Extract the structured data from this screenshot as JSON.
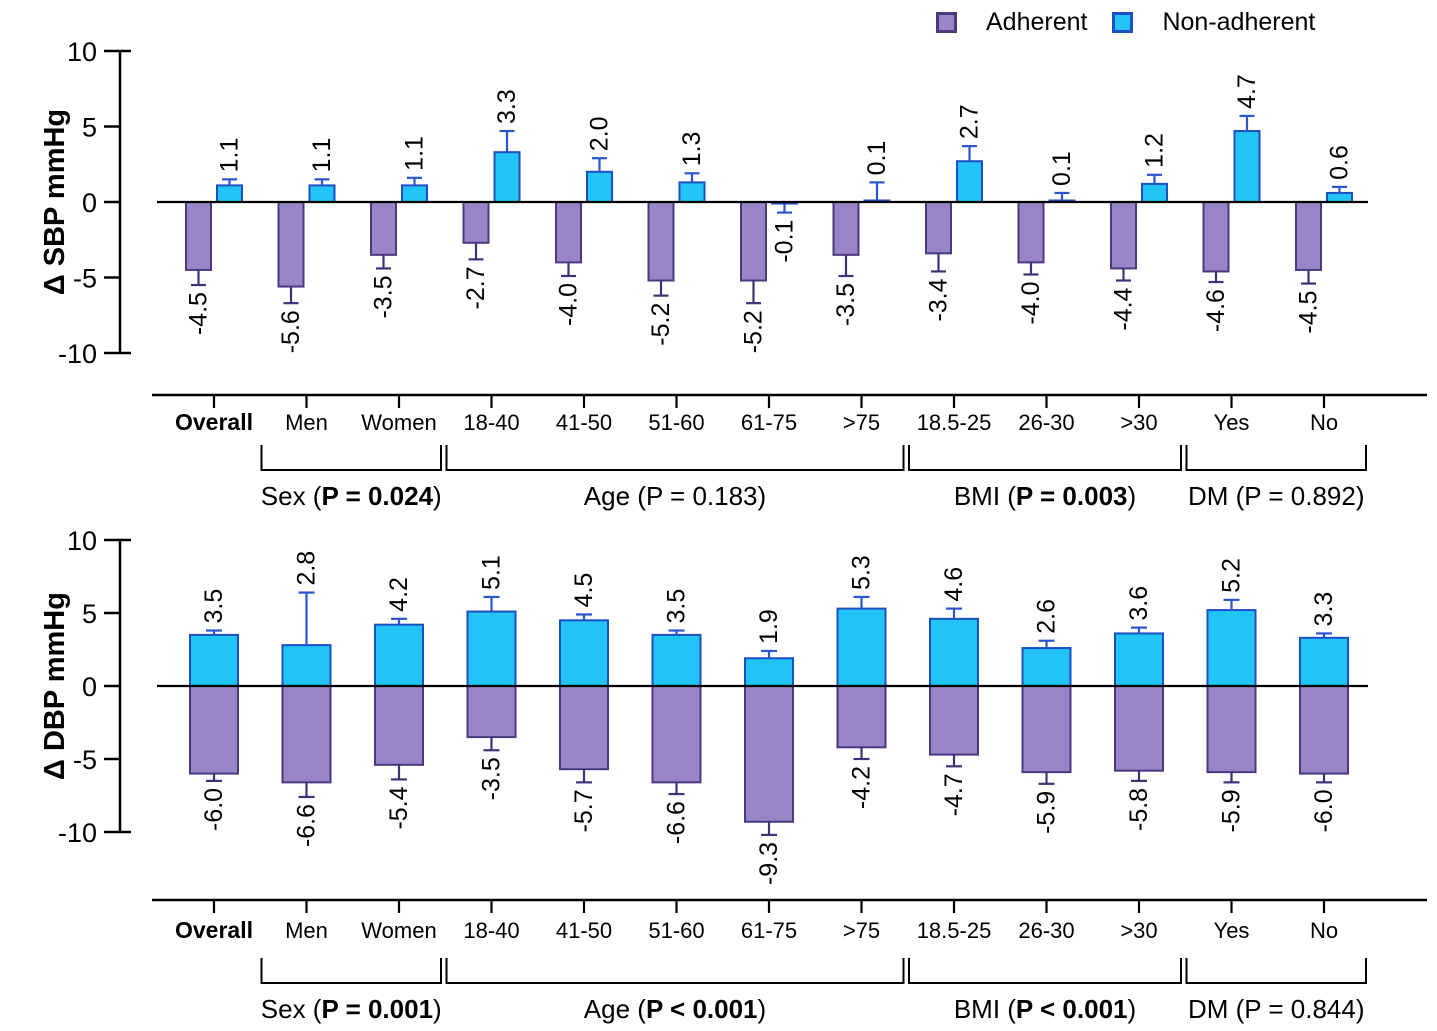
{
  "figure": {
    "background": "#ffffff",
    "description": "Change in blood pressure (SBP/DBP) for adherent vs non-adherent patients by subgroup"
  },
  "legend": {
    "items": [
      {
        "label": "Adherent",
        "fill": "#9A84C8",
        "border": "#493A80"
      },
      {
        "label": "Non-adherent",
        "fill": "#22C4F5",
        "border": "#1D4FC4"
      }
    ]
  },
  "colors": {
    "adherent_fill": "#9A84C8",
    "adherent_stroke": "#493A80",
    "adherent_error": "#3F3178",
    "nonadherent_fill": "#22C4F5",
    "nonadherent_stroke": "#1D4FC4",
    "nonadherent_error": "#2B55D0",
    "axis": "#000000"
  },
  "chart_data": [
    {
      "type": "bar",
      "panel": "SBP",
      "ylabel": "Δ SBP mmHg",
      "ylim": [
        -10,
        10
      ],
      "yticks": [
        10,
        5,
        0,
        -5,
        -10
      ],
      "layout": "paired",
      "grid": false,
      "categories": [
        "Overall",
        "Men",
        "Women",
        "18-40",
        "41-50",
        "51-60",
        "61-75",
        ">75",
        "18.5-25",
        "26-30",
        ">30",
        "Yes",
        "No"
      ],
      "bold_categories": [
        "Overall"
      ],
      "series": [
        {
          "name": "Adherent",
          "values": [
            -4.5,
            -5.6,
            -3.5,
            -2.7,
            -4.0,
            -5.2,
            -5.2,
            -3.5,
            -3.4,
            -4.0,
            -4.4,
            -4.6,
            -4.5
          ],
          "errors": [
            1.0,
            1.1,
            0.9,
            1.1,
            0.9,
            1.0,
            1.5,
            1.4,
            1.2,
            0.8,
            0.8,
            0.7,
            0.9
          ]
        },
        {
          "name": "Non-adherent",
          "values": [
            1.1,
            1.1,
            1.1,
            3.3,
            2.0,
            1.3,
            -0.1,
            0.1,
            2.7,
            0.1,
            1.2,
            4.7,
            0.6
          ],
          "errors": [
            0.4,
            0.4,
            0.5,
            1.4,
            0.9,
            0.6,
            0.6,
            1.2,
            1.0,
            0.5,
            0.6,
            1.0,
            0.4
          ]
        }
      ],
      "groups": [
        {
          "label": "Sex",
          "p": "P = 0.024",
          "p_bold": true,
          "from": 1,
          "to": 2
        },
        {
          "label": "Age",
          "p": "P = 0.183",
          "p_bold": false,
          "from": 3,
          "to": 7
        },
        {
          "label": "BMI",
          "p": "P = 0.003",
          "p_bold": true,
          "from": 8,
          "to": 10
        },
        {
          "label": "DM",
          "p": "P = 0.892",
          "p_bold": false,
          "from": 11,
          "to": 12
        }
      ]
    },
    {
      "type": "bar",
      "panel": "DBP",
      "ylabel": "Δ DBP mmHg",
      "ylim": [
        -10,
        10
      ],
      "yticks": [
        10,
        5,
        0,
        -5,
        -10
      ],
      "layout": "overlapped",
      "grid": false,
      "categories": [
        "Overall",
        "Men",
        "Women",
        "18-40",
        "41-50",
        "51-60",
        "61-75",
        ">75",
        "18.5-25",
        "26-30",
        ">30",
        "Yes",
        "No"
      ],
      "bold_categories": [
        "Overall"
      ],
      "series": [
        {
          "name": "Adherent",
          "values": [
            -6.0,
            -6.6,
            -5.4,
            -3.5,
            -5.7,
            -6.6,
            -9.3,
            -4.2,
            -4.7,
            -5.9,
            -5.8,
            -5.9,
            -6.0
          ],
          "errors": [
            0.5,
            1.0,
            1.0,
            0.9,
            0.9,
            0.8,
            0.9,
            0.8,
            0.8,
            0.8,
            0.7,
            0.7,
            0.6
          ]
        },
        {
          "name": "Non-adherent",
          "values": [
            3.5,
            2.8,
            4.2,
            5.1,
            4.5,
            3.5,
            1.9,
            5.3,
            4.6,
            2.6,
            3.6,
            5.2,
            3.3
          ],
          "errors": [
            0.3,
            3.6,
            0.4,
            1.0,
            0.4,
            0.3,
            0.5,
            0.8,
            0.7,
            0.5,
            0.4,
            0.7,
            0.3
          ]
        }
      ],
      "groups": [
        {
          "label": "Sex",
          "p": "P = 0.001",
          "p_bold": true,
          "from": 1,
          "to": 2
        },
        {
          "label": "Age",
          "p": "P < 0.001",
          "p_bold": true,
          "from": 3,
          "to": 7
        },
        {
          "label": "BMI",
          "p": "P < 0.001",
          "p_bold": true,
          "from": 8,
          "to": 10
        },
        {
          "label": "DM",
          "p": "P = 0.844",
          "p_bold": false,
          "from": 11,
          "to": 12
        }
      ]
    }
  ]
}
